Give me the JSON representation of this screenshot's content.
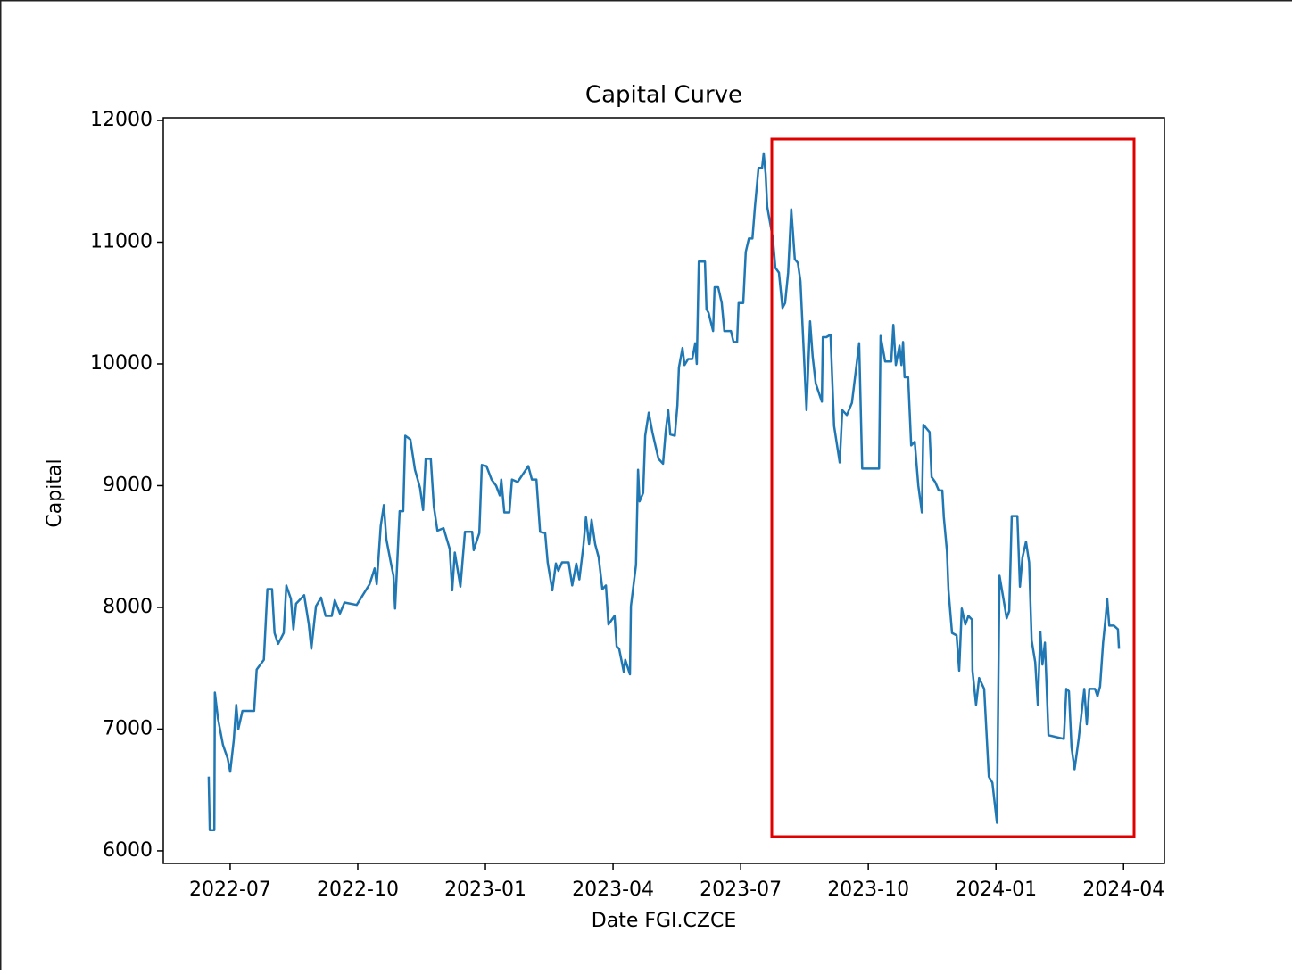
{
  "chart_data": {
    "type": "line",
    "title": "Capital Curve",
    "xlabel": "Date FGI.CZCE",
    "ylabel": "Capital",
    "color": "#1f77b4",
    "xlim": [
      2022.369,
      2024.33
    ],
    "ylim": [
      5897,
      12022
    ],
    "xticks": [
      {
        "value": 2022.5,
        "label": "2022-07"
      },
      {
        "value": 2022.75,
        "label": "2022-10"
      },
      {
        "value": 2023.0,
        "label": "2023-01"
      },
      {
        "value": 2023.25,
        "label": "2023-04"
      },
      {
        "value": 2023.5,
        "label": "2023-07"
      },
      {
        "value": 2023.75,
        "label": "2023-10"
      },
      {
        "value": 2024.0,
        "label": "2024-01"
      },
      {
        "value": 2024.25,
        "label": "2024-04"
      }
    ],
    "yticks": [
      6000,
      7000,
      8000,
      9000,
      10000,
      11000,
      12000
    ],
    "x": [
      2022.458,
      2022.46,
      2022.469,
      2022.47,
      2022.476,
      2022.486,
      2022.495,
      2022.5,
      2022.507,
      2022.512,
      2022.516,
      2022.524,
      2022.547,
      2022.552,
      2022.566,
      2022.573,
      2022.582,
      2022.587,
      2022.594,
      2022.605,
      2022.61,
      2022.619,
      2022.624,
      2022.629,
      2022.645,
      2022.654,
      2022.659,
      2022.668,
      2022.678,
      2022.687,
      2022.699,
      2022.705,
      2022.715,
      2022.724,
      2022.748,
      2022.773,
      2022.783,
      2022.787,
      2022.795,
      2022.801,
      2022.806,
      2022.815,
      2022.82,
      2022.823,
      2022.832,
      2022.839,
      2022.843,
      2022.853,
      2022.862,
      2022.872,
      2022.878,
      2022.883,
      2022.893,
      2022.899,
      2022.906,
      2022.918,
      2022.93,
      2022.935,
      2022.94,
      2022.951,
      2022.96,
      2022.974,
      2022.977,
      2022.988,
      2022.993,
      2023.002,
      2023.012,
      2023.021,
      2023.028,
      2023.031,
      2023.037,
      2023.047,
      2023.052,
      2023.063,
      2023.084,
      2023.091,
      2023.1,
      2023.107,
      2023.117,
      2023.122,
      2023.131,
      2023.138,
      2023.143,
      2023.15,
      2023.163,
      2023.17,
      2023.178,
      2023.184,
      2023.192,
      2023.197,
      2023.203,
      2023.208,
      2023.215,
      2023.222,
      2023.229,
      2023.236,
      2023.241,
      2023.253,
      2023.257,
      2023.262,
      2023.271,
      2023.274,
      2023.283,
      2023.285,
      2023.295,
      2023.299,
      2023.302,
      2023.309,
      2023.313,
      2023.32,
      2023.327,
      2023.339,
      2023.348,
      2023.353,
      2023.358,
      2023.362,
      2023.371,
      2023.376,
      2023.379,
      2023.386,
      2023.39,
      2023.397,
      2023.405,
      2023.411,
      2023.414,
      2023.418,
      2023.43,
      2023.433,
      2023.437,
      2023.446,
      2023.449,
      2023.456,
      2023.463,
      2023.468,
      2023.481,
      2023.486,
      2023.493,
      2023.496,
      2023.505,
      2023.51,
      2023.516,
      2023.523,
      2023.528,
      2023.535,
      2023.542,
      2023.545,
      2023.549,
      2023.552,
      2023.563,
      2023.568,
      2023.575,
      2023.582,
      2023.587,
      2023.593,
      2023.599,
      2023.606,
      2023.612,
      2023.617,
      2023.629,
      2023.636,
      2023.641,
      2023.647,
      2023.659,
      2023.661,
      2023.668,
      2023.676,
      2023.683,
      2023.694,
      2023.699,
      2023.708,
      2023.718,
      2023.732,
      2023.738,
      2023.771,
      2023.774,
      2023.783,
      2023.795,
      2023.799,
      2023.804,
      2023.811,
      2023.815,
      2023.818,
      2023.821,
      2023.828,
      2023.834,
      2023.841,
      2023.848,
      2023.855,
      2023.858,
      2023.87,
      2023.874,
      2023.881,
      2023.888,
      2023.895,
      2023.898,
      2023.904,
      2023.907,
      2023.914,
      2023.923,
      2023.928,
      2023.933,
      2023.94,
      2023.946,
      2023.953,
      2023.954,
      2023.961,
      2023.967,
      2023.977,
      2023.986,
      2023.993,
      2024.002,
      2024.007,
      2024.016,
      2024.021,
      2024.026,
      2024.031,
      2024.042,
      2024.047,
      2024.052,
      2024.059,
      2024.065,
      2024.07,
      2024.077,
      2024.082,
      2024.087,
      2024.091,
      2024.096,
      2024.103,
      2024.133,
      2024.138,
      2024.143,
      2024.148,
      2024.154,
      2024.162,
      2024.173,
      2024.178,
      2024.183,
      2024.194,
      2024.199,
      2024.204,
      2024.21,
      2024.215,
      2024.218,
      2024.222,
      2024.231,
      2024.239,
      2024.241
    ],
    "values": [
      6610,
      6170,
      6170,
      7300,
      7090,
      6870,
      6760,
      6650,
      6910,
      7200,
      7000,
      7150,
      7150,
      7490,
      7570,
      8150,
      8150,
      7790,
      7700,
      7790,
      8180,
      8070,
      7820,
      8030,
      8100,
      7860,
      7660,
      8010,
      8080,
      7930,
      7930,
      8060,
      7950,
      8040,
      8020,
      8190,
      8320,
      8190,
      8670,
      8840,
      8560,
      8360,
      8260,
      7990,
      8790,
      8790,
      9410,
      9380,
      9130,
      8980,
      8800,
      9220,
      9220,
      8830,
      8630,
      8650,
      8480,
      8140,
      8450,
      8170,
      8620,
      8620,
      8470,
      8610,
      9170,
      9160,
      9050,
      9000,
      8920,
      9050,
      8780,
      8780,
      9050,
      9030,
      9160,
      9050,
      9050,
      8620,
      8610,
      8370,
      8140,
      8360,
      8300,
      8370,
      8370,
      8180,
      8360,
      8230,
      8510,
      8740,
      8520,
      8720,
      8520,
      8410,
      8150,
      8180,
      7860,
      7930,
      7680,
      7660,
      7470,
      7570,
      7450,
      8010,
      8350,
      9130,
      8870,
      8940,
      9410,
      9600,
      9440,
      9220,
      9180,
      9440,
      9620,
      9420,
      9410,
      9660,
      9970,
      10130,
      9990,
      10040,
      10040,
      10170,
      10000,
      10840,
      10840,
      10450,
      10420,
      10270,
      10630,
      10630,
      10500,
      10270,
      10270,
      10180,
      10180,
      10500,
      10500,
      10920,
      11030,
      11030,
      11290,
      11610,
      11610,
      11730,
      11560,
      11290,
      11030,
      10790,
      10750,
      10460,
      10500,
      10750,
      11270,
      10860,
      10830,
      10680,
      9620,
      10350,
      10060,
      9840,
      9690,
      10220,
      10220,
      10240,
      9490,
      9190,
      9620,
      9580,
      9680,
      10170,
      9140,
      9140,
      10230,
      10020,
      10020,
      10320,
      9990,
      10150,
      9990,
      10180,
      9890,
      9890,
      9330,
      9360,
      9000,
      8780,
      9500,
      9440,
      9070,
      9030,
      8960,
      8960,
      8740,
      8460,
      8140,
      7790,
      7770,
      7480,
      7990,
      7860,
      7930,
      7900,
      7480,
      7200,
      7420,
      7330,
      6610,
      6560,
      6230,
      8260,
      8040,
      7910,
      7970,
      8750,
      8750,
      8170,
      8410,
      8540,
      8370,
      7730,
      7550,
      7200,
      7800,
      7530,
      7710,
      6950,
      6920,
      7330,
      7310,
      6850,
      6670,
      6920,
      7330,
      7040,
      7330,
      7330,
      7270,
      7350,
      7710,
      7920,
      8070,
      7850,
      7850,
      7820,
      7660
    ]
  }
}
